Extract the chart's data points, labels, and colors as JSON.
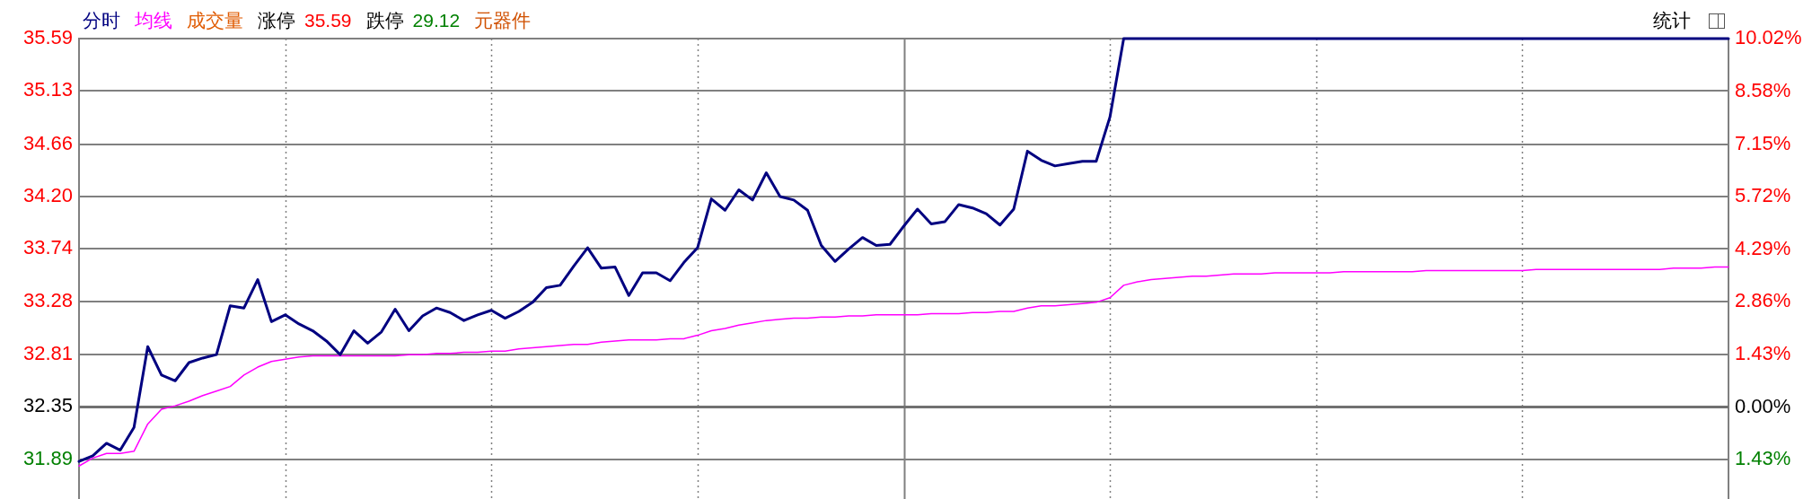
{
  "chart_data": {
    "type": "line",
    "categories": [
      null,
      null,
      null,
      null,
      null,
      null,
      null,
      null,
      null,
      null,
      null,
      null,
      null,
      null,
      null,
      null,
      null,
      null,
      null,
      null,
      null,
      null,
      null,
      null,
      null,
      null,
      null,
      null,
      null,
      null,
      null,
      null,
      null,
      null,
      null,
      null,
      null,
      null,
      null,
      null,
      null,
      null,
      null,
      null,
      null,
      null,
      null,
      null,
      null,
      null,
      null,
      null,
      null,
      null,
      null,
      null,
      null,
      null,
      null,
      null,
      null,
      null,
      null,
      null,
      null,
      null,
      null,
      null,
      null,
      null,
      null,
      null,
      null,
      null,
      null,
      null,
      null,
      null,
      null,
      null,
      null,
      null,
      null,
      null,
      null,
      null,
      null,
      null,
      null,
      null,
      null,
      null,
      null,
      null,
      null,
      null,
      null,
      null,
      null,
      null,
      null,
      null,
      null,
      null,
      null,
      null,
      null,
      null,
      null,
      null,
      null,
      null,
      null,
      null,
      null,
      null,
      null,
      null,
      null,
      null,
      null
    ],
    "series": [
      {
        "name": "分时",
        "color": "#000080",
        "values": [
          31.87,
          31.92,
          32.03,
          31.97,
          32.17,
          32.88,
          32.63,
          32.58,
          32.74,
          32.78,
          32.81,
          33.24,
          33.22,
          33.47,
          33.1,
          33.16,
          33.08,
          33.02,
          32.93,
          32.81,
          33.02,
          32.91,
          33.01,
          33.21,
          33.02,
          33.15,
          33.22,
          33.18,
          33.11,
          33.16,
          33.2,
          33.13,
          33.19,
          33.27,
          33.4,
          33.42,
          33.59,
          33.75,
          33.57,
          33.58,
          33.33,
          33.53,
          33.53,
          33.46,
          33.62,
          33.75,
          34.18,
          34.08,
          34.26,
          34.17,
          34.41,
          34.2,
          34.17,
          34.08,
          33.77,
          33.63,
          33.74,
          33.84,
          33.77,
          33.78,
          33.94,
          34.09,
          33.96,
          33.98,
          34.13,
          34.1,
          34.05,
          33.95,
          34.09,
          34.6,
          34.52,
          34.47,
          34.49,
          34.51,
          34.51,
          34.9,
          35.59,
          35.59,
          35.59,
          35.59,
          35.59,
          35.59,
          35.59,
          35.59,
          35.59,
          35.59,
          35.59,
          35.59,
          35.59,
          35.59,
          35.59,
          35.59,
          35.59,
          35.59,
          35.59,
          35.59,
          35.59,
          35.59,
          35.59,
          35.59,
          35.59,
          35.59,
          35.59,
          35.59,
          35.59,
          35.59,
          35.59,
          35.59,
          35.59,
          35.59,
          35.59,
          35.59,
          35.59,
          35.59,
          35.59,
          35.59,
          35.59,
          35.59,
          35.59,
          35.59,
          35.59
        ]
      },
      {
        "name": "均线",
        "color": "#ff00ff",
        "values": [
          31.83,
          31.9,
          31.94,
          31.94,
          31.96,
          32.2,
          32.33,
          32.36,
          32.4,
          32.45,
          32.49,
          32.53,
          32.63,
          32.7,
          32.75,
          32.77,
          32.79,
          32.8,
          32.8,
          32.8,
          32.8,
          32.8,
          32.8,
          32.8,
          32.81,
          32.81,
          32.82,
          32.82,
          32.83,
          32.83,
          32.84,
          32.84,
          32.86,
          32.87,
          32.88,
          32.89,
          32.9,
          32.9,
          32.92,
          32.93,
          32.94,
          32.94,
          32.94,
          32.95,
          32.95,
          32.98,
          33.02,
          33.04,
          33.07,
          33.09,
          33.11,
          33.12,
          33.13,
          33.13,
          33.14,
          33.14,
          33.15,
          33.15,
          33.16,
          33.16,
          33.16,
          33.16,
          33.17,
          33.17,
          33.17,
          33.18,
          33.18,
          33.19,
          33.19,
          33.22,
          33.24,
          33.24,
          33.25,
          33.26,
          33.27,
          33.31,
          33.42,
          33.45,
          33.47,
          33.48,
          33.49,
          33.5,
          33.5,
          33.51,
          33.52,
          33.52,
          33.52,
          33.53,
          33.53,
          33.53,
          33.53,
          33.53,
          33.54,
          33.54,
          33.54,
          33.54,
          33.54,
          33.54,
          33.55,
          33.55,
          33.55,
          33.55,
          33.55,
          33.55,
          33.55,
          33.55,
          33.56,
          33.56,
          33.56,
          33.56,
          33.56,
          33.56,
          33.56,
          33.56,
          33.56,
          33.56,
          33.57,
          33.57,
          33.57,
          33.58,
          33.58
        ]
      }
    ],
    "ylim": [
      31.54,
      35.59
    ],
    "yticks": [
      31.89,
      32.35,
      32.81,
      33.28,
      33.74,
      {
        "value": 34.2,
        "label": "34.20"
      },
      34.66,
      35.13,
      35.59
    ],
    "y2lim": [
      -2.5,
      10.02
    ],
    "y2ticks": [
      {
        "value": -1.43,
        "label": "1.43%"
      },
      {
        "value": 0,
        "label": "0.00%"
      },
      {
        "value": 1.43,
        "label": "1.43%"
      },
      {
        "value": 2.86,
        "label": "2.86%"
      },
      {
        "value": 4.29,
        "label": "4.29%"
      },
      {
        "value": 5.72,
        "label": "5.72%"
      },
      {
        "value": 7.15,
        "label": "7.15%"
      },
      {
        "value": 8.58,
        "label": "8.58%"
      },
      {
        "value": 10.02,
        "label": "10.02%"
      }
    ],
    "ref_lines": [
      {
        "axis": "y",
        "value": 32.35,
        "color": "#707070"
      }
    ],
    "annotations": [
      "成交量",
      "涨停 35.59",
      "跌停 29.12",
      "元器件",
      "统计"
    ],
    "legend": "top left",
    "grid": true
  }
}
